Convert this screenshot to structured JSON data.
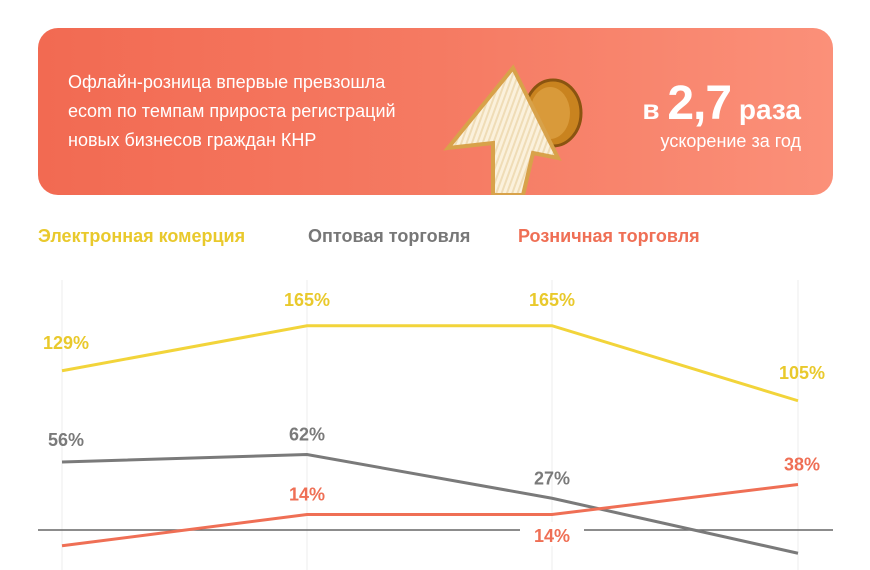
{
  "banner": {
    "text_lines": [
      "Офлайн-розница впервые превзошла",
      "ecom по темпам прироста регистраций",
      "новых бизнесов граждан КНР"
    ],
    "big_prefix": "в",
    "big_number": "2,7",
    "big_suffix": "раза",
    "subtitle": "ускорение за год",
    "icon": "arrow-up-with-coin-icon",
    "colors": {
      "start": "#f26a52",
      "end": "#fb9079"
    }
  },
  "chart_data": {
    "type": "line",
    "x": [
      1,
      2,
      3,
      4
    ],
    "series": [
      {
        "name": "Электронная комерция",
        "color": "#f2d43a",
        "values": [
          129,
          165,
          165,
          105
        ],
        "labels": [
          "129%",
          "165%",
          "165%",
          "105%"
        ]
      },
      {
        "name": "Оптовая торговля",
        "color": "#7a7a7a",
        "values": [
          56,
          62,
          27,
          -17
        ],
        "labels": [
          "56%",
          "62%",
          "27%",
          ""
        ]
      },
      {
        "name": "Розничная торговля",
        "color": "#ef6f55",
        "values": [
          -11,
          14,
          14,
          38
        ],
        "labels": [
          "",
          "14%",
          "14%",
          "38%"
        ]
      }
    ],
    "legend_position": "top-left",
    "grid": "vertical",
    "zero_line": true
  }
}
